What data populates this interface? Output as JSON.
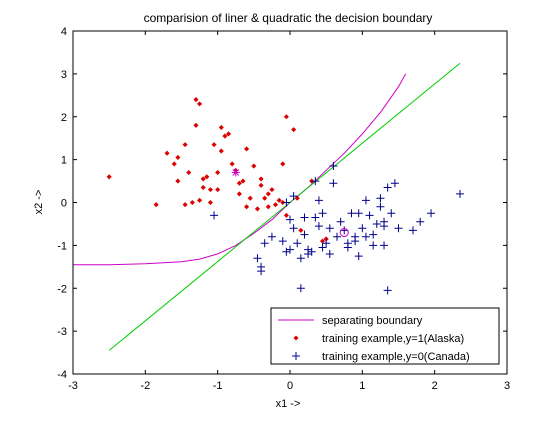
{
  "chart_data": {
    "type": "scatter",
    "title": "comparision of liner & quadratic the decision boundary",
    "xlabel": "x1 ->",
    "ylabel": "x2 ->",
    "xlim": [
      -3,
      3
    ],
    "ylim": [
      -4,
      4
    ],
    "xticks": [
      -3,
      -2,
      -1,
      0,
      1,
      2,
      3
    ],
    "yticks": [
      -4,
      -3,
      -2,
      -1,
      0,
      1,
      2,
      3,
      4
    ],
    "grid": false,
    "legend_position": "bottom-right",
    "series": [
      {
        "name": "separating boundary",
        "kind": "line",
        "color": "#cc00cc",
        "x": [
          -3.0,
          -2.5,
          -2.0,
          -1.5,
          -1.25,
          -1.0,
          -0.75,
          -0.5,
          -0.25,
          0.0,
          0.25,
          0.5,
          0.75,
          1.0,
          1.25,
          1.5,
          1.6
        ],
        "y": [
          -1.45,
          -1.45,
          -1.43,
          -1.38,
          -1.32,
          -1.2,
          -1.0,
          -0.72,
          -0.4,
          0.0,
          0.35,
          0.75,
          1.15,
          1.6,
          2.1,
          2.7,
          3.0
        ]
      },
      {
        "name": "linear boundary",
        "kind": "line",
        "color": "#00cc00",
        "legend": false,
        "x": [
          -2.5,
          2.35
        ],
        "y": [
          -3.45,
          3.25
        ]
      },
      {
        "name": "training example,y=1(Alaska)",
        "kind": "marker",
        "marker": "dot",
        "color": "#dd0000",
        "x": [
          -2.5,
          -1.85,
          -1.7,
          -1.6,
          -1.55,
          -1.45,
          -1.4,
          -1.35,
          -1.3,
          -1.25,
          -1.2,
          -1.15,
          -1.1,
          -1.05,
          -1.0,
          -0.95,
          -0.9,
          -0.85,
          -0.8,
          -0.75,
          -0.7,
          -0.65,
          -0.6,
          -0.55,
          -0.5,
          -0.45,
          -0.4,
          -0.35,
          -0.3,
          -0.25,
          -0.2,
          -0.15,
          -0.1,
          -0.05,
          0.05,
          0.1,
          0.3,
          0.45,
          -1.3,
          -1.25,
          -1.2,
          -1.1,
          -1.0,
          -0.95,
          -1.45,
          -1.55,
          -0.7,
          -0.6,
          -0.4,
          -0.3,
          -0.1,
          0.5,
          0.15,
          -0.05
        ],
        "y": [
          0.6,
          -0.05,
          1.15,
          0.9,
          1.05,
          1.35,
          0.7,
          0.0,
          2.4,
          0.05,
          0.35,
          0.6,
          0.0,
          1.35,
          0.3,
          1.75,
          1.55,
          1.6,
          0.9,
          0.75,
          0.2,
          0.5,
          1.25,
          0.1,
          0.85,
          -0.15,
          0.55,
          0.1,
          -0.1,
          0.3,
          -0.05,
          0.05,
          0.0,
          2.0,
          1.7,
          0.1,
          0.5,
          -0.9,
          1.8,
          2.3,
          0.55,
          0.3,
          0.7,
          1.2,
          -0.05,
          0.5,
          0.45,
          -0.1,
          0.4,
          0.2,
          0.9,
          -0.85,
          -0.65,
          -0.3
        ]
      },
      {
        "name": "training example,y=0(Canada)",
        "kind": "marker",
        "marker": "plus",
        "color": "#00008b",
        "x": [
          -1.05,
          -0.45,
          -0.4,
          -0.4,
          -0.35,
          -0.25,
          -0.1,
          -0.05,
          0.0,
          0.05,
          0.1,
          0.15,
          0.2,
          0.25,
          0.3,
          0.35,
          0.4,
          0.45,
          0.5,
          0.55,
          0.6,
          0.65,
          0.7,
          0.75,
          0.8,
          0.85,
          0.9,
          0.95,
          1.0,
          1.05,
          1.1,
          1.15,
          1.2,
          1.25,
          1.3,
          1.35,
          1.4,
          1.45,
          1.5,
          1.7,
          1.8,
          1.95,
          2.35,
          0.15,
          0.2,
          0.35,
          0.6,
          0.9,
          1.05,
          1.3,
          1.15,
          0.95,
          1.25,
          1.35,
          0.05,
          0.0,
          -0.05,
          0.4,
          0.45,
          0.55,
          0.8,
          1.3,
          0.25
        ],
        "y": [
          -0.3,
          -1.3,
          -1.5,
          -1.6,
          -0.95,
          -0.8,
          -0.9,
          -1.15,
          -0.4,
          -0.6,
          -0.95,
          -1.3,
          -0.35,
          -1.1,
          -1.15,
          0.5,
          0.05,
          -0.25,
          -0.95,
          -0.6,
          0.85,
          -0.8,
          -0.45,
          -0.65,
          -1.05,
          -0.25,
          -0.8,
          -1.25,
          -0.6,
          -0.8,
          -0.3,
          -1.0,
          -0.5,
          -0.1,
          -0.45,
          -2.05,
          -0.25,
          0.45,
          -0.6,
          -0.65,
          -0.45,
          -0.25,
          0.2,
          -2.0,
          -0.75,
          -0.35,
          0.45,
          -0.9,
          0.05,
          -1.0,
          -0.75,
          -0.25,
          0.1,
          0.35,
          0.15,
          -1.1,
          0.0,
          -0.55,
          -1.05,
          -1.2,
          -0.95,
          -0.55,
          -1.2
        ]
      },
      {
        "name": "Alaska mean",
        "kind": "marker",
        "marker": "star",
        "color": "#cc00cc",
        "legend": false,
        "x": [
          -0.75
        ],
        "y": [
          0.7
        ]
      },
      {
        "name": "Canada mean",
        "kind": "marker",
        "marker": "circle",
        "color": "#cc00cc",
        "legend": false,
        "x": [
          0.75
        ],
        "y": [
          -0.7
        ]
      }
    ]
  }
}
